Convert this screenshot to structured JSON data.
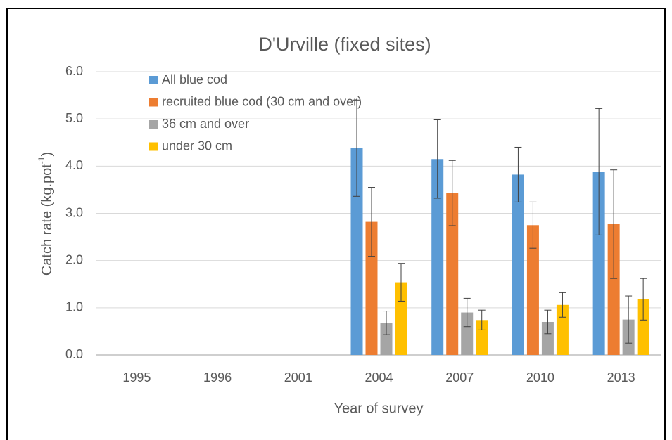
{
  "chart_data": {
    "type": "bar",
    "title": "D'Urville (fixed sites)",
    "x_label": "Year of survey",
    "y_label": {
      "text": "Catch rate (kg.pot",
      "superscript": "-1",
      "suffix": ")"
    },
    "categories": [
      "1995",
      "1996",
      "2001",
      "2004",
      "2007",
      "2010",
      "2013"
    ],
    "series": [
      {
        "name": "All blue cod",
        "color": "#5b9bd5",
        "values": [
          null,
          null,
          null,
          4.38,
          4.15,
          3.82,
          3.88
        ],
        "errors": [
          null,
          null,
          null,
          1.02,
          0.83,
          0.58,
          1.34
        ]
      },
      {
        "name": "recruited blue cod (30 cm and over)",
        "color": "#ed7d31",
        "values": [
          null,
          null,
          null,
          2.82,
          3.43,
          2.75,
          2.77
        ],
        "errors": [
          null,
          null,
          null,
          0.73,
          0.69,
          0.49,
          1.15
        ]
      },
      {
        "name": "36 cm and over",
        "color": "#a5a5a5",
        "values": [
          null,
          null,
          null,
          0.68,
          0.9,
          0.7,
          0.75
        ],
        "errors": [
          null,
          null,
          null,
          0.25,
          0.3,
          0.25,
          0.5
        ]
      },
      {
        "name": "under 30 cm",
        "color": "#ffc000",
        "values": [
          null,
          null,
          null,
          1.54,
          0.74,
          1.06,
          1.18
        ],
        "errors": [
          null,
          null,
          null,
          0.4,
          0.21,
          0.26,
          0.44
        ]
      }
    ],
    "ylim": [
      0,
      6
    ],
    "yticks": [
      {
        "value": 0,
        "label": "0.0"
      },
      {
        "value": 1,
        "label": "1.0"
      },
      {
        "value": 2,
        "label": "2.0"
      },
      {
        "value": 3,
        "label": "3.0"
      },
      {
        "value": 4,
        "label": "4.0"
      },
      {
        "value": 5,
        "label": "5.0"
      },
      {
        "value": 6,
        "label": "6.0"
      }
    ],
    "grid": true,
    "legend": "top-left"
  }
}
